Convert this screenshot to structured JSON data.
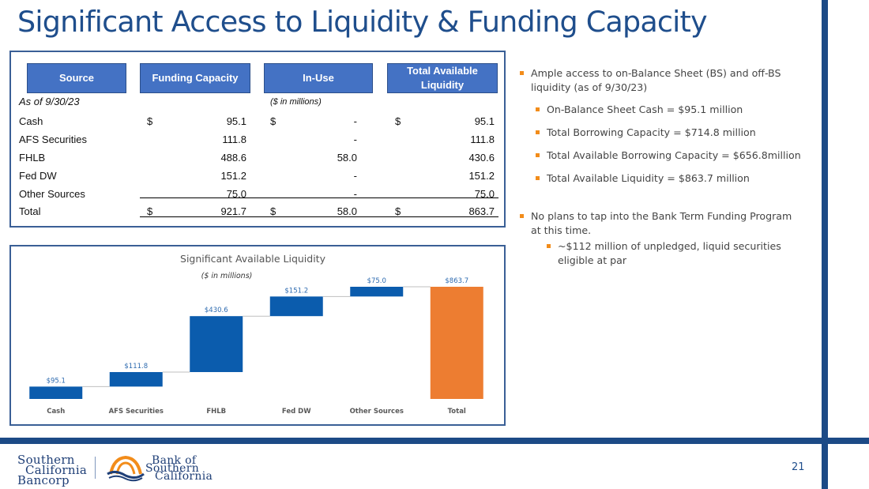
{
  "title": "Significant Access to Liquidity & Funding Capacity",
  "table": {
    "headers": [
      "Source",
      "Funding Capacity",
      "In-Use",
      "Total Available Liquidity"
    ],
    "as_of": "As of 9/30/23",
    "units": "($ in millions)",
    "currency": "$",
    "rows": [
      {
        "source": "Cash",
        "funding": "95.1",
        "in_use": "-",
        "available": "95.1"
      },
      {
        "source": "AFS Securities",
        "funding": "111.8",
        "in_use": "-",
        "available": "111.8"
      },
      {
        "source": "FHLB",
        "funding": "488.6",
        "in_use": "58.0",
        "available": "430.6"
      },
      {
        "source": "Fed DW",
        "funding": "151.2",
        "in_use": "-",
        "available": "151.2"
      },
      {
        "source": "Other Sources",
        "funding": "75.0",
        "in_use": "-",
        "available": "75.0"
      }
    ],
    "total": {
      "source": "Total",
      "funding": "921.7",
      "in_use": "58.0",
      "available": "863.7"
    }
  },
  "chart_data": {
    "type": "bar",
    "subtype": "waterfall",
    "title": "Significant Available Liquidity",
    "subtitle": "($ in millions)",
    "categories": [
      "Cash",
      "AFS Securities",
      "FHLB",
      "Fed DW",
      "Other Sources",
      "Total"
    ],
    "values": [
      95.1,
      111.8,
      430.6,
      151.2,
      75.0,
      863.7
    ],
    "labels": [
      "$95.1",
      "$111.8",
      "$430.6",
      "$151.2",
      "$75.0",
      "$863.7"
    ],
    "colors": {
      "increment": "#0b5cad",
      "total": "#ed7d31",
      "label": "#2e6bb0"
    },
    "ylim": [
      0,
      863.7
    ],
    "grid": false,
    "legend": "none"
  },
  "bullets": [
    {
      "level": 1,
      "lines": [
        "Ample access to on-Balance Sheet (BS) and off-BS",
        "liquidity (as of 9/30/23)"
      ]
    },
    {
      "level": 2,
      "lines": [
        "On-Balance Sheet Cash = $95.1 million"
      ]
    },
    {
      "level": 2,
      "lines": [
        "Total Borrowing Capacity = $714.8 million"
      ]
    },
    {
      "level": 2,
      "lines": [
        "Total Available Borrowing Capacity = $656.8million"
      ]
    },
    {
      "level": 2,
      "lines": [
        "Total Available Liquidity = $863.7 million"
      ]
    },
    {
      "level": 1,
      "lines": [
        "No plans to tap into the Bank Term Funding Program",
        "at this time."
      ]
    },
    {
      "level": 3,
      "lines": [
        "~$112 million of unpledged, liquid securities",
        "eligible at par"
      ]
    }
  ],
  "footer": {
    "logo_left": [
      "Southern",
      "California",
      "Bancorp"
    ],
    "logo_right": [
      "Bank of",
      "Southern",
      "California"
    ],
    "page_number": "21"
  },
  "brand_colors": {
    "navy": "#1c4a86",
    "header_blue": "#4472c4",
    "accent_orange": "#f28c1a"
  }
}
